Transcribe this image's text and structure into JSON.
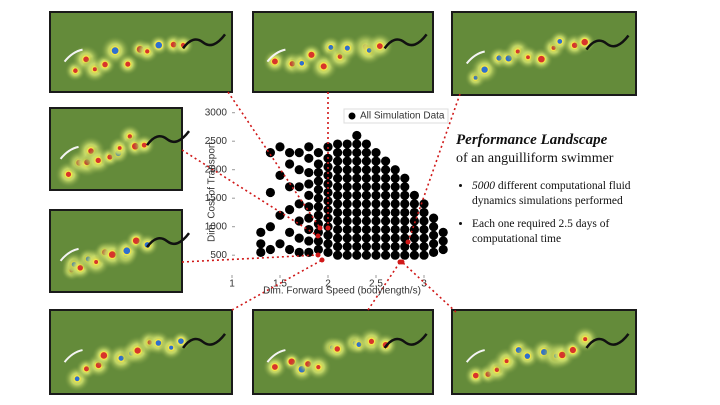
{
  "chart_data": {
    "type": "scatter",
    "x_label": "Dim. Forward Speed (bodylength/s)",
    "y_label": "Dim. Cost of Transport",
    "legend": "upper right",
    "x": [
      1.3,
      1.3,
      1.3,
      1.4,
      1.4,
      1.4,
      1.4,
      1.5,
      1.5,
      1.5,
      1.5,
      1.6,
      1.6,
      1.6,
      1.6,
      1.6,
      1.6,
      1.7,
      1.7,
      1.7,
      1.7,
      1.7,
      1.7,
      1.7,
      1.8,
      1.8,
      1.8,
      1.8,
      1.8,
      1.8,
      1.8,
      1.8,
      1.8,
      1.8,
      1.9,
      1.9,
      1.9,
      1.9,
      1.9,
      1.9,
      1.9,
      1.9,
      1.9,
      1.9,
      1.9,
      1.9,
      2,
      2,
      2,
      2,
      2,
      2,
      2,
      2,
      2,
      2,
      2,
      2,
      2,
      2.1,
      2.1,
      2.1,
      2.1,
      2.1,
      2.1,
      2.1,
      2.1,
      2.1,
      2.1,
      2.1,
      2.1,
      2.1,
      2.1,
      2.2,
      2.2,
      2.2,
      2.2,
      2.2,
      2.2,
      2.2,
      2.2,
      2.2,
      2.2,
      2.2,
      2.2,
      2.2,
      2.2,
      2.3,
      2.3,
      2.3,
      2.3,
      2.3,
      2.3,
      2.3,
      2.3,
      2.3,
      2.3,
      2.3,
      2.3,
      2.3,
      2.3,
      2.3,
      2.4,
      2.4,
      2.4,
      2.4,
      2.4,
      2.4,
      2.4,
      2.4,
      2.4,
      2.4,
      2.4,
      2.4,
      2.4,
      2.4,
      2.5,
      2.5,
      2.5,
      2.5,
      2.5,
      2.5,
      2.5,
      2.5,
      2.5,
      2.5,
      2.5,
      2.5,
      2.5,
      2.6,
      2.6,
      2.6,
      2.6,
      2.6,
      2.6,
      2.6,
      2.6,
      2.6,
      2.6,
      2.6,
      2.6,
      2.7,
      2.7,
      2.7,
      2.7,
      2.7,
      2.7,
      2.7,
      2.7,
      2.7,
      2.7,
      2.7,
      2.8,
      2.8,
      2.8,
      2.8,
      2.8,
      2.8,
      2.8,
      2.8,
      2.8,
      2.8,
      2.9,
      2.9,
      2.9,
      2.9,
      2.9,
      2.9,
      2.9,
      2.9,
      3,
      3,
      3,
      3,
      3,
      3,
      3,
      3.1,
      3.1,
      3.1,
      3.1,
      3.1,
      3.2,
      3.2,
      3.2
    ],
    "series": [
      {
        "name": "All Simulation Data",
        "color": "#000000",
        "values": [
          550,
          700,
          900,
          600,
          1000,
          1600,
          2300,
          700,
          1200,
          1900,
          2400,
          600,
          900,
          1300,
          1700,
          2100,
          2300,
          550,
          800,
          1100,
          1400,
          1700,
          2000,
          2300,
          550,
          750,
          950,
          1150,
          1350,
          1550,
          1750,
          1950,
          2200,
          2400,
          600,
          750,
          900,
          1050,
          1200,
          1350,
          1500,
          1650,
          1800,
          1950,
          2100,
          2300,
          550,
          700,
          850,
          1000,
          1150,
          1300,
          1450,
          1600,
          1750,
          1900,
          2050,
          2200,
          2400,
          500,
          650,
          800,
          950,
          1100,
          1250,
          1400,
          1550,
          1700,
          1850,
          2000,
          2150,
          2300,
          2450,
          500,
          650,
          800,
          950,
          1100,
          1250,
          1400,
          1550,
          1700,
          1850,
          2000,
          2150,
          2300,
          2450,
          500,
          650,
          800,
          950,
          1100,
          1250,
          1400,
          1550,
          1700,
          1850,
          2000,
          2150,
          2300,
          2450,
          2600,
          500,
          650,
          800,
          950,
          1100,
          1250,
          1400,
          1550,
          1700,
          1850,
          2000,
          2150,
          2300,
          2450,
          500,
          650,
          800,
          950,
          1100,
          1250,
          1400,
          1550,
          1700,
          1850,
          2000,
          2150,
          2300,
          500,
          650,
          800,
          950,
          1100,
          1250,
          1400,
          1550,
          1700,
          1850,
          2000,
          2150,
          500,
          650,
          800,
          950,
          1100,
          1250,
          1400,
          1550,
          1700,
          1850,
          2000,
          500,
          650,
          800,
          950,
          1100,
          1250,
          1400,
          1550,
          1700,
          1850,
          500,
          650,
          800,
          950,
          1100,
          1250,
          1400,
          1550,
          500,
          650,
          800,
          950,
          1100,
          1250,
          1400,
          550,
          700,
          850,
          1000,
          1150,
          600,
          750,
          900
        ]
      }
    ],
    "xlim": [
      1,
      3.25
    ],
    "ylim": [
      100,
      3100
    ],
    "xticks": [
      1,
      1.5,
      2,
      2.5,
      3
    ],
    "yticks": [
      500,
      1000,
      1500,
      2000,
      2500,
      3000
    ]
  },
  "panel": {
    "title": "Performance Landscape",
    "subtitle": "of an anguilliform swimmer",
    "bullets": [
      {
        "emphasis": "5000",
        "text": " different computational fluid dynamics simulations performed"
      },
      {
        "text": "Each one required 2.5 days of computational time"
      }
    ]
  }
}
